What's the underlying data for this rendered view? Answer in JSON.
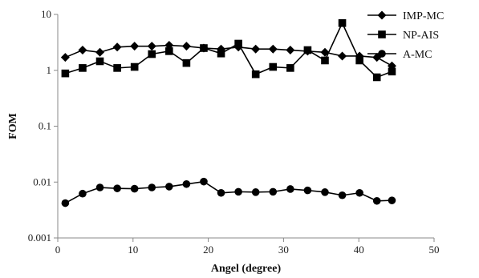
{
  "chart_data": {
    "type": "line",
    "title": "",
    "xlabel": "Angel (degree)",
    "ylabel": "FOM",
    "xlim": [
      0,
      50
    ],
    "ylim": [
      0.001,
      10
    ],
    "yscale": "log",
    "grid": false,
    "legend_position": "top-right",
    "x_ticks": [
      "0",
      "10",
      "20",
      "30",
      "40",
      "50"
    ],
    "y_ticks": [
      "0.001",
      "0.01",
      "0.1",
      "1",
      "10"
    ],
    "x_tick_values": [
      0,
      10,
      20,
      30,
      40,
      50
    ],
    "y_tick_values": [
      0.001,
      0.01,
      0.1,
      1,
      10
    ],
    "series": [
      {
        "name": "IMP-MC",
        "marker": "diamond",
        "color": "#000000",
        "x": [
          1,
          3.3,
          5.6,
          7.9,
          10.2,
          12.5,
          14.8,
          17.1,
          19.4,
          21.7,
          24,
          26.3,
          28.6,
          30.9,
          33.2,
          35.5,
          37.8,
          40.1,
          42.4,
          44.4
        ],
        "y": [
          1.7,
          2.3,
          2.1,
          2.6,
          2.7,
          2.7,
          2.8,
          2.7,
          2.5,
          2.4,
          2.6,
          2.4,
          2.4,
          2.3,
          2.2,
          2.1,
          1.8,
          1.8,
          1.7,
          1.2
        ]
      },
      {
        "name": "NP-AIS",
        "marker": "square",
        "color": "#000000",
        "x": [
          1,
          3.3,
          5.6,
          7.9,
          10.2,
          12.5,
          14.8,
          17.1,
          19.4,
          21.7,
          24,
          26.3,
          28.6,
          30.9,
          33.2,
          35.5,
          37.8,
          40.1,
          42.4,
          44.4
        ],
        "y": [
          0.88,
          1.1,
          1.45,
          1.1,
          1.15,
          1.95,
          2.2,
          1.35,
          2.5,
          2.0,
          3.0,
          0.85,
          1.15,
          1.1,
          2.3,
          1.5,
          7.0,
          1.5,
          0.75,
          0.95
        ]
      },
      {
        "name": "A-MC",
        "marker": "circle",
        "color": "#000000",
        "x": [
          1,
          3.3,
          5.6,
          7.9,
          10.2,
          12.5,
          14.8,
          17.1,
          19.4,
          21.7,
          24,
          26.3,
          28.6,
          30.9,
          33.2,
          35.5,
          37.8,
          40.1,
          42.4,
          44.4
        ],
        "y": [
          0.0042,
          0.0062,
          0.008,
          0.0077,
          0.0076,
          0.008,
          0.0083,
          0.0092,
          0.0102,
          0.0064,
          0.0067,
          0.0066,
          0.0067,
          0.0075,
          0.0071,
          0.0066,
          0.0058,
          0.0064,
          0.0046,
          0.0047
        ]
      }
    ]
  }
}
